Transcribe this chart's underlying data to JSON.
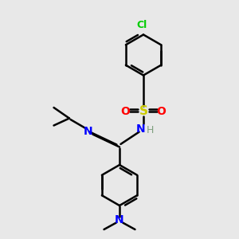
{
  "bg_color": "#e8e8e8",
  "bond_color": "#000000",
  "colors": {
    "N": "#0000ff",
    "O": "#ff0000",
    "S": "#cccc00",
    "Cl": "#00cc00",
    "H": "#7f9f7f",
    "C": "#000000"
  },
  "lw": 1.8,
  "xlim": [
    0,
    10
  ],
  "ylim": [
    0,
    10
  ]
}
